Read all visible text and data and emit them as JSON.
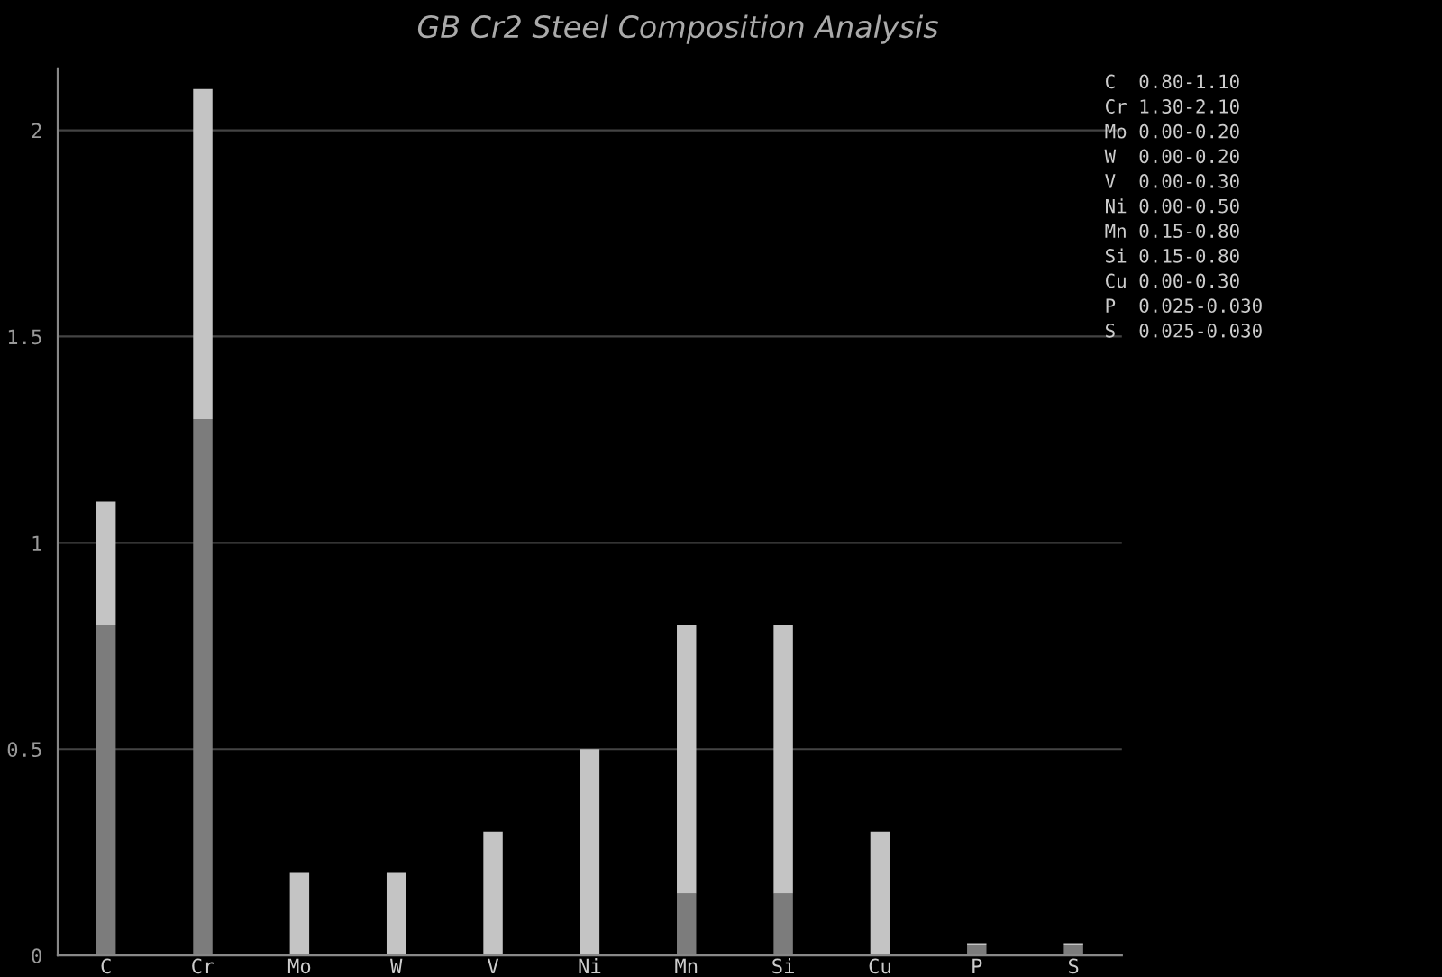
{
  "chart_data": {
    "type": "bar",
    "title": "GB Cr2 Steel Composition Analysis",
    "categories": [
      "C",
      "Cr",
      "Mo",
      "W",
      "V",
      "Ni",
      "Mn",
      "Si",
      "Cu",
      "P",
      "S"
    ],
    "stacked": true,
    "series": [
      {
        "color": "#7c7c7c",
        "values": [
          0.8,
          1.3,
          0,
          0,
          0,
          0,
          0.15,
          0.15,
          0,
          0.025,
          0.025
        ]
      },
      {
        "color": "#c4c4c4",
        "values": [
          0.3,
          0.8,
          0.2,
          0.2,
          0.3,
          0.5,
          0.65,
          0.65,
          0.3,
          0.005,
          0.005
        ]
      }
    ],
    "ylim": [
      0,
      2.15
    ],
    "yticks": [
      0,
      0.5,
      1,
      1.5,
      2
    ],
    "grid": "y",
    "legend": false,
    "annotations": [
      "C  0.80-1.10",
      "Cr 1.30-2.10",
      "Mo 0.00-0.20",
      "W  0.00-0.20",
      "V  0.00-0.30",
      "Ni 0.00-0.50",
      "Mn 0.15-0.80",
      "Si 0.15-0.80",
      "Cu 0.00-0.30",
      "P  0.025-0.030",
      "S  0.025-0.030"
    ]
  }
}
